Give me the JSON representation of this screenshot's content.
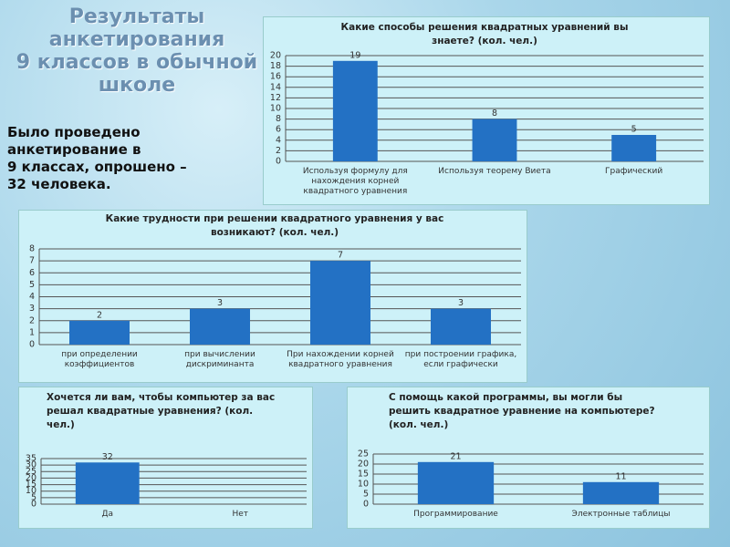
{
  "slide": {
    "title": [
      "Результаты",
      "анкетирования",
      "9 классов в обычной",
      "школе"
    ],
    "text": [
      "Было проведено",
      "анкетирование в",
      "9 классах, опрошено –",
      "32 человека."
    ]
  },
  "chart_data": [
    {
      "type": "bar",
      "title": "Какие способы решения квадратных уравнений вы знаете? (кол. чел.)",
      "categories": [
        "Используя формулу для нахождения корней квадратного уравнения",
        "Используя теорему Виета",
        "Графический"
      ],
      "values": [
        19,
        8,
        5
      ],
      "color": "#2371c4",
      "ylim": [
        0,
        20
      ],
      "yticks": [
        0,
        2,
        4,
        6,
        8,
        10,
        12,
        14,
        16,
        18,
        20
      ],
      "grid": true
    },
    {
      "type": "bar",
      "title": "Какие трудности при решении квадратного уравнения у вас возникают? (кол. чел.)",
      "categories": [
        "при определении коэффициентов",
        "при вычислении дискриминанта",
        "При нахождении корней квадратного уравнения",
        "при построении графика, если графически"
      ],
      "values": [
        2,
        3,
        7,
        3
      ],
      "color": "#2371c4",
      "ylim": [
        0,
        8
      ],
      "yticks": [
        0,
        1,
        2,
        3,
        4,
        5,
        6,
        7,
        8
      ],
      "grid": true
    },
    {
      "type": "bar",
      "title": "Хочется ли вам, чтобы компьютер за вас решал квадратные уравнения? (кол. чел.)",
      "categories": [
        "Да",
        "Нет"
      ],
      "values": [
        32,
        0
      ],
      "color": "#2371c4",
      "ylim": [
        0,
        35
      ],
      "yticks": [
        0,
        5,
        10,
        15,
        20,
        25,
        30,
        35
      ],
      "grid": true
    },
    {
      "type": "bar",
      "title": "С помощь какой программы, вы могли бы решить квадратное уравнение на компьютере? (кол. чел.)",
      "categories": [
        "Программирование",
        "Электронные таблицы"
      ],
      "values": [
        21,
        11
      ],
      "color": "#2371c4",
      "ylim": [
        0,
        25
      ],
      "yticks": [
        0,
        5,
        10,
        15,
        20,
        25
      ],
      "grid": true
    }
  ]
}
